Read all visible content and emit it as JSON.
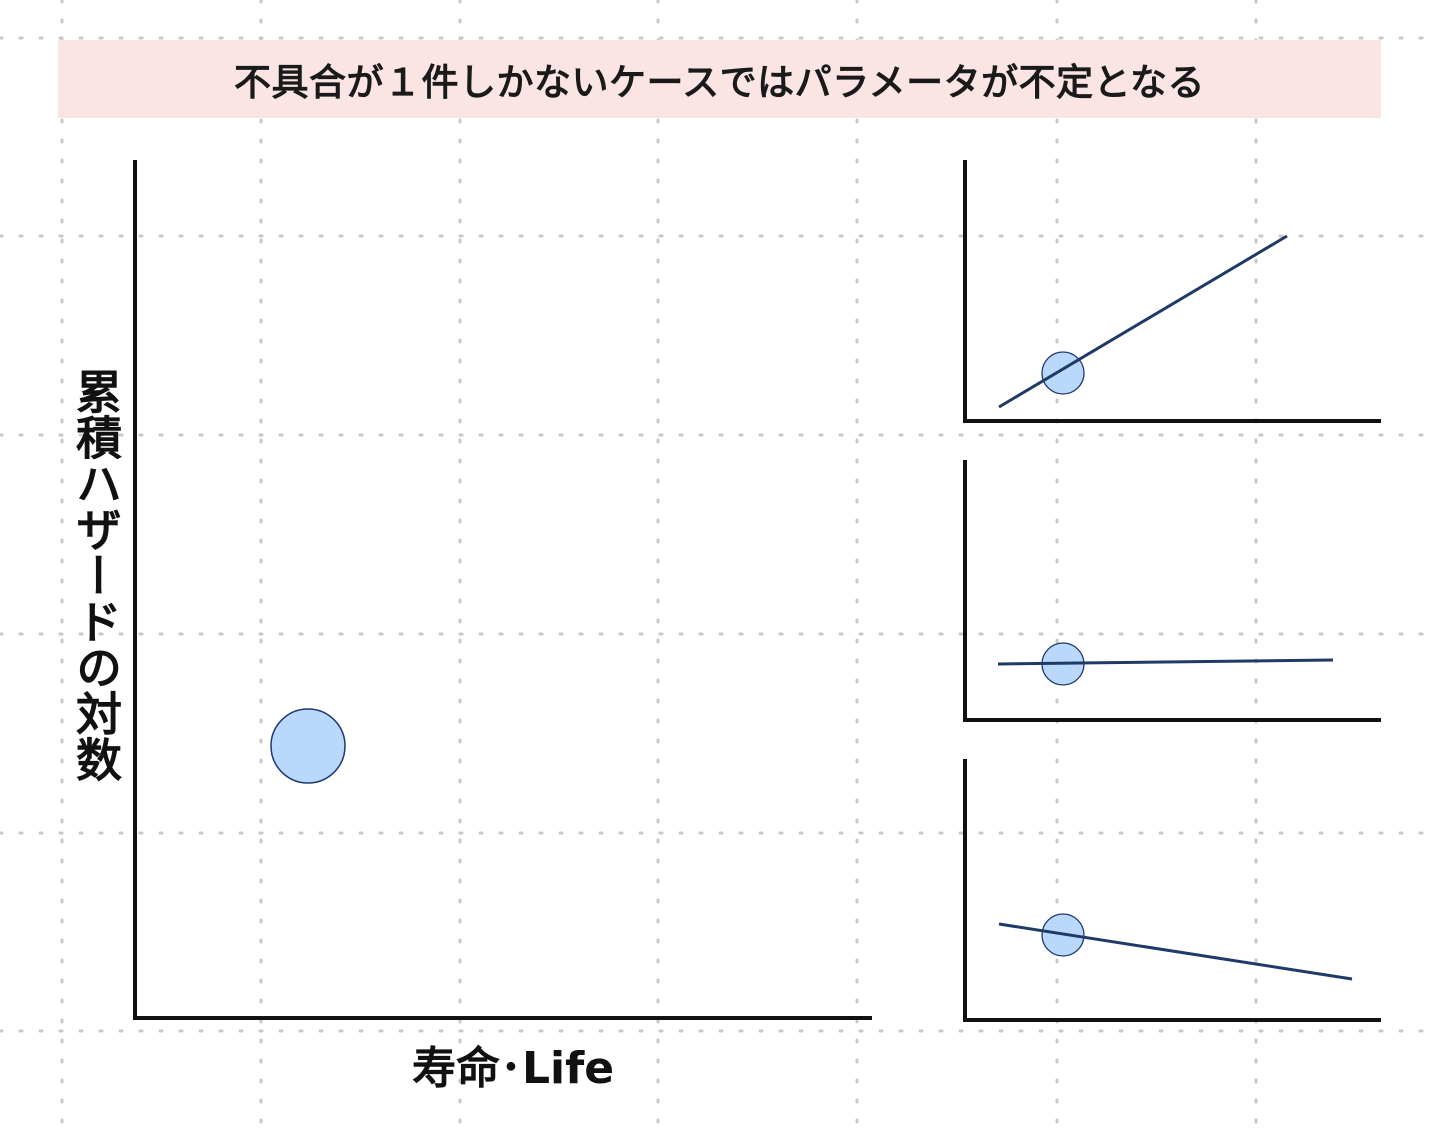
{
  "banner": {
    "text": "不具合が１件しかないケースではパラメータが不定となる"
  },
  "main_plot": {
    "ylabel": "累積ハザードの対数",
    "xlabel": "寿命･Life"
  },
  "colors": {
    "banner_bg": "#fbe4e4",
    "axis": "#111111",
    "point_fill": "#b9d8fb",
    "point_stroke": "#1e3a6e",
    "fit_line": "#1f3a66",
    "grid_dot": "#c8c8c8"
  },
  "insets": [
    {
      "name": "positive-slope",
      "slope_sign": "positive"
    },
    {
      "name": "flat-slope",
      "slope_sign": "zero"
    },
    {
      "name": "negative-slope",
      "slope_sign": "negative"
    }
  ]
}
